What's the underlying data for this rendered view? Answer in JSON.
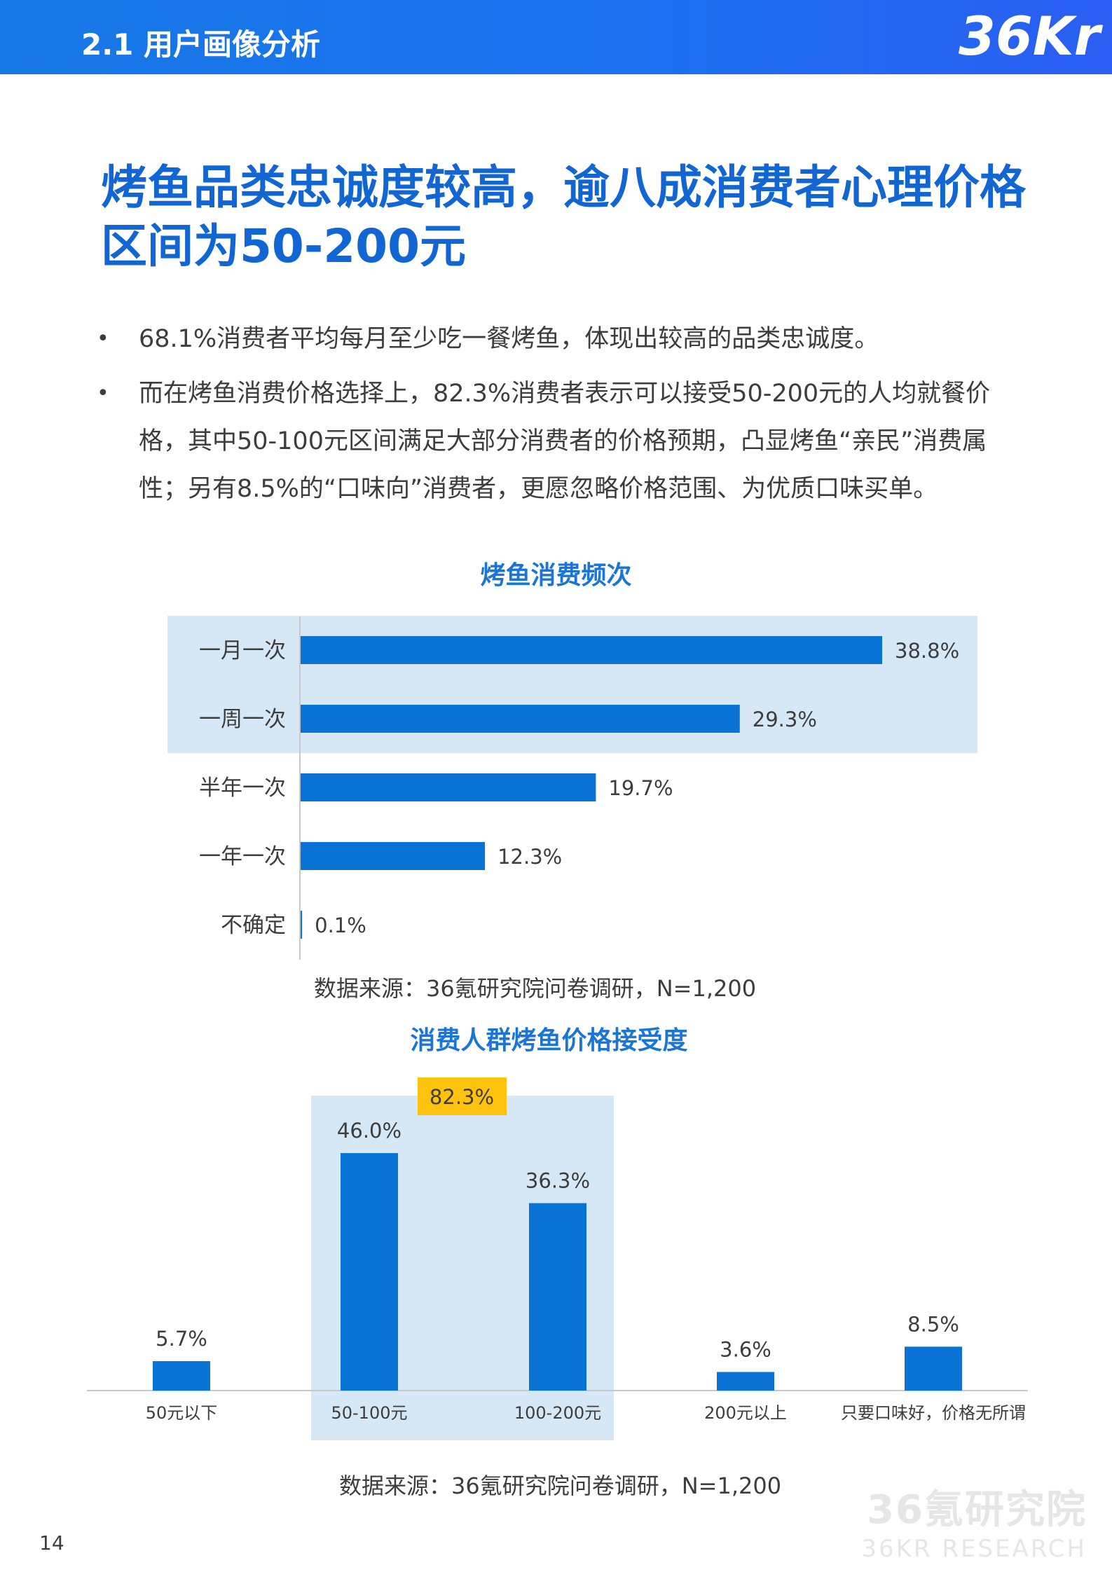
{
  "header": {
    "section_title": "2.1 用户画像分析",
    "logo_text": "36Kr",
    "bar_color": "#1c6ff0"
  },
  "headline": "烤鱼品类忠诚度较高，逾八成消费者心理价格区间为50-200元",
  "bullets": [
    "68.1%消费者平均每月至少吃一餐烤鱼，体现出较高的品类忠诚度。",
    "而在烤鱼消费价格选择上，82.3%消费者表示可以接受50-200元的人均就餐价格，其中50-100元区间满足大部分消费者的价格预期，凸显烤鱼“亲民”消费属性；另有8.5%的“口味向”消费者，更愿忽略价格范围、为优质口味买单。"
  ],
  "bullet_symbol": "•",
  "chart_data": [
    {
      "type": "bar",
      "orientation": "horizontal",
      "title": "烤鱼消费频次",
      "categories": [
        "一月一次",
        "一周一次",
        "半年一次",
        "一年一次",
        "不确定"
      ],
      "values": [
        38.8,
        29.3,
        19.7,
        12.3,
        0.1
      ],
      "value_labels": [
        "38.8%",
        "29.3%",
        "19.7%",
        "12.3%",
        "0.1%"
      ],
      "unit": "%",
      "highlighted_categories": [
        "一月一次",
        "一周一次"
      ],
      "bar_color": "#0a74d6",
      "highlight_color": "#d6e8f6",
      "xlim": [
        0,
        40
      ],
      "grid": false,
      "source": "数据来源：36氪研究院问卷调研，N=1,200"
    },
    {
      "type": "bar",
      "orientation": "vertical",
      "title": "消费人群烤鱼价格接受度",
      "categories": [
        "50元以下",
        "50-100元",
        "100-200元",
        "200元以上",
        "只要口味好，价格无所谓"
      ],
      "values": [
        5.7,
        46.0,
        36.3,
        3.6,
        8.5
      ],
      "value_labels": [
        "5.7%",
        "46.0%",
        "36.3%",
        "3.6%",
        "8.5%"
      ],
      "unit": "%",
      "highlighted_categories": [
        "50-100元",
        "100-200元"
      ],
      "highlight_total_label": "82.3%",
      "highlight_badge_color": "#ffc20e",
      "bar_color": "#0a74d6",
      "highlight_color": "#d6e8f6",
      "ylim": [
        0,
        50
      ],
      "grid": false,
      "source": "数据来源：36氪研究院问卷调研，N=1,200"
    }
  ],
  "footer": {
    "page_number": "14",
    "watermark_cn": "36氪研究院",
    "watermark_en": "36KR RESEARCH"
  }
}
